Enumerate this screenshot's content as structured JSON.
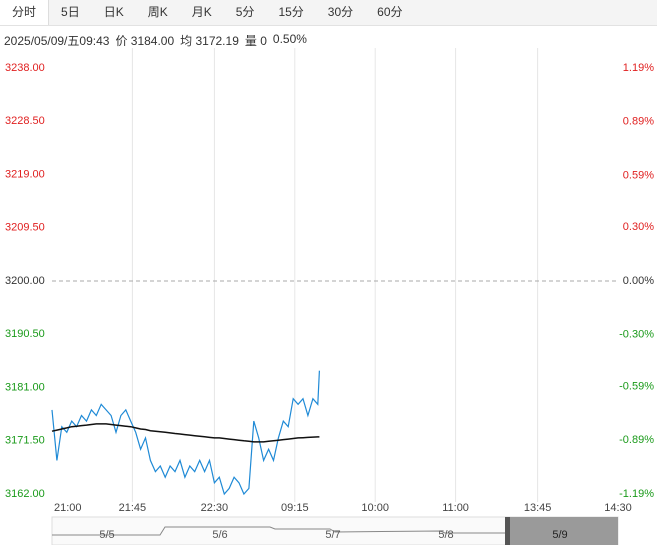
{
  "tabs": [
    "分时",
    "5日",
    "日K",
    "周K",
    "月K",
    "5分",
    "15分",
    "30分",
    "60分"
  ],
  "info": [
    "2025/05/09/五09:43",
    "价 3184.00",
    "均 3172.19",
    "量 0",
    "0.50%"
  ],
  "chart_data": {
    "type": "line",
    "x": [
      0,
      3,
      6,
      9,
      12,
      15,
      18,
      21,
      24,
      27,
      30,
      33,
      36,
      39,
      42,
      45,
      48,
      51,
      54,
      57,
      60,
      63,
      66,
      69,
      72,
      75,
      78,
      81,
      84,
      87,
      90,
      93,
      96,
      99,
      102,
      105,
      108,
      111,
      114,
      117,
      120,
      123,
      126,
      129,
      132,
      135,
      138,
      141,
      144,
      147,
      150,
      153,
      156,
      159,
      162,
      163
    ],
    "series": [
      {
        "color": "#1f8ad6",
        "values": [
          3177,
          3168,
          3174,
          3173,
          3175,
          3174,
          3176,
          3175,
          3177,
          3176,
          3178,
          3177,
          3176,
          3173,
          3176,
          3177,
          3175,
          3173,
          3170,
          3172,
          3168,
          3166,
          3167,
          3165,
          3167,
          3166,
          3168,
          3165,
          3167,
          3166,
          3168,
          3166,
          3168,
          3164,
          3165,
          3162,
          3163,
          3165,
          3164,
          3162,
          3163,
          3175,
          3172,
          3168,
          3170,
          3168,
          3172,
          3175,
          3174,
          3179,
          3178,
          3179,
          3176,
          3179,
          3178,
          3184
        ]
      },
      {
        "color": "#111111",
        "values": [
          3173.2,
          3173.4,
          3173.6,
          3173.8,
          3174.0,
          3174.1,
          3174.2,
          3174.3,
          3174.4,
          3174.5,
          3174.5,
          3174.5,
          3174.4,
          3174.3,
          3174.2,
          3174.1,
          3174.0,
          3173.8,
          3173.6,
          3173.5,
          3173.3,
          3173.2,
          3173.1,
          3173.0,
          3172.9,
          3172.8,
          3172.7,
          3172.6,
          3172.5,
          3172.4,
          3172.3,
          3172.2,
          3172.1,
          3172.0,
          3172.0,
          3171.9,
          3171.8,
          3171.7,
          3171.6,
          3171.5,
          3171.4,
          3171.3,
          3171.3,
          3171.3,
          3171.4,
          3171.5,
          3171.6,
          3171.7,
          3171.8,
          3171.9,
          3172.0,
          3172.05,
          3172.1,
          3172.15,
          3172.18,
          3172.19
        ]
      }
    ],
    "xlim": [
      0,
      345
    ],
    "xticks": [
      {
        "value": 0,
        "label": "21:00"
      },
      {
        "value": 49,
        "label": "21:45"
      },
      {
        "value": 99,
        "label": "22:30"
      },
      {
        "value": 148,
        "label": "09:15"
      },
      {
        "value": 197,
        "label": "10:00"
      },
      {
        "value": 246,
        "label": "11:00"
      },
      {
        "value": 296,
        "label": "13:45"
      },
      {
        "value": 345,
        "label": "14:30"
      }
    ],
    "ylim": [
      3162,
      3238
    ],
    "yticks": [
      {
        "value": 3238,
        "label": "3238.00"
      },
      {
        "value": 3228.5,
        "label": "3228.50"
      },
      {
        "value": 3219,
        "label": "3219.00"
      },
      {
        "value": 3209.5,
        "label": "3209.50"
      },
      {
        "value": 3200,
        "label": "3200.00"
      },
      {
        "value": 3190.5,
        "label": "3190.50"
      },
      {
        "value": 3181,
        "label": "3181.00"
      },
      {
        "value": 3171.5,
        "label": "3171.50"
      },
      {
        "value": 3162,
        "label": "3162.00"
      }
    ],
    "y2lim": [
      -1.19,
      1.19
    ],
    "y2ticks": [
      {
        "value": 1.19,
        "label": "1.19%"
      },
      {
        "value": 0.89,
        "label": "0.89%"
      },
      {
        "value": 0.59,
        "label": "0.59%"
      },
      {
        "value": 0.3,
        "label": "0.30%"
      },
      {
        "value": 0,
        "label": "0.00%"
      },
      {
        "value": -0.3,
        "label": "-0.30%"
      },
      {
        "value": -0.59,
        "label": "-0.59%"
      },
      {
        "value": -0.89,
        "label": "-0.89%"
      },
      {
        "value": -1.19,
        "label": "-1.19%"
      }
    ],
    "reference_line": 3200,
    "grid": true
  },
  "navigator": [
    "5/5",
    "5/6",
    "5/7",
    "5/8",
    "5/9"
  ]
}
